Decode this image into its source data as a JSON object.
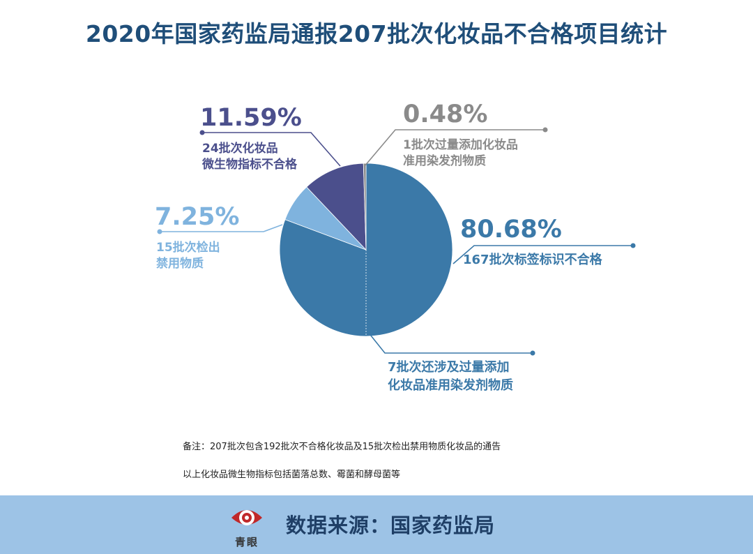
{
  "title": "2020年国家药监局通报207批次化妆品不合格项目统计",
  "chart_data": {
    "type": "pie",
    "title": "2020年国家药监局通报207批次化妆品不合格项目统计",
    "slices": [
      {
        "key": "label",
        "value": 80.68,
        "pct_label": "80.68%",
        "text": "167批次标签标识不合格",
        "color": "#3b79a8"
      },
      {
        "key": "banned",
        "value": 7.25,
        "pct_label": "7.25%",
        "text": "15批次检出\n禁用物质",
        "color": "#7fb3de"
      },
      {
        "key": "micro",
        "value": 11.59,
        "pct_label": "11.59%",
        "text": "24批次化妆品\n微生物指标不合格",
        "color": "#4b4f8c"
      },
      {
        "key": "excess",
        "value": 0.48,
        "pct_label": "0.48%",
        "text": "1批次过量添加化妆品\n准用染发剂物质",
        "color": "#8a8a8a"
      }
    ],
    "sub_annotation": "7批次还涉及过量添加\n化妆品准用染发剂物质"
  },
  "notes": [
    "备注：207批次包含192批次不合格化妆品及15批次检出禁用物质化妆品的通告",
    "以上化妆品微生物指标包括菌落总数、霉菌和酵母菌等"
  ],
  "footer": {
    "logo_text": "青眼",
    "source": "数据来源：国家药监局"
  },
  "colors": {
    "title": "#1f4e79",
    "footer_bg": "#9dc3e6"
  }
}
